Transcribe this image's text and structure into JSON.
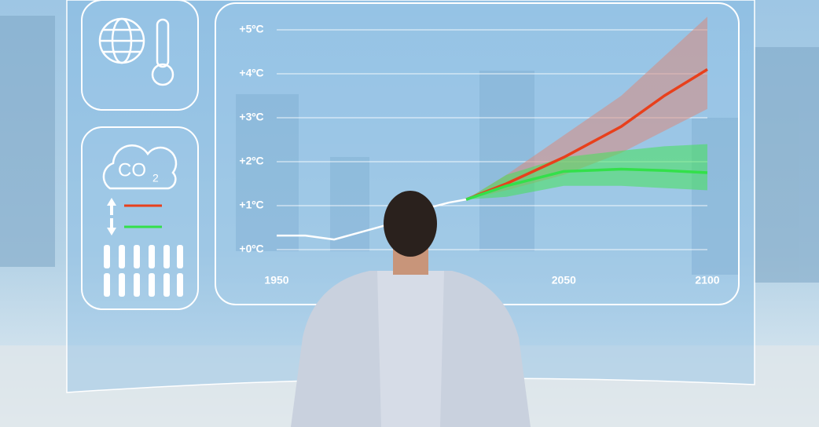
{
  "panel": {
    "co2": "CO",
    "co2_subscript": "2"
  },
  "chart_data": {
    "type": "line",
    "x": [
      1950,
      1960,
      1970,
      1980,
      1990,
      2000,
      2010,
      2016,
      2030,
      2050,
      2070,
      2085,
      2100
    ],
    "series": [
      {
        "color": "#ffffff",
        "values": [
          0.32,
          0.32,
          0.23,
          0.41,
          0.59,
          0.9,
          1.07,
          1.14,
          null,
          null,
          null,
          null,
          null
        ]
      },
      {
        "color": "#e8401c",
        "values": [
          null,
          null,
          null,
          null,
          null,
          null,
          null,
          1.14,
          1.5,
          2.1,
          2.8,
          3.5,
          4.1
        ],
        "lower": [
          null,
          null,
          null,
          null,
          null,
          null,
          null,
          1.14,
          1.35,
          1.7,
          2.2,
          2.7,
          3.2
        ],
        "upper": [
          null,
          null,
          null,
          null,
          null,
          null,
          null,
          1.14,
          1.7,
          2.6,
          3.5,
          4.4,
          5.3
        ],
        "band_color": "#d88a7e"
      },
      {
        "color": "#33e04a",
        "values": [
          null,
          null,
          null,
          null,
          null,
          null,
          null,
          1.14,
          1.45,
          1.78,
          1.83,
          1.8,
          1.75
        ],
        "lower": [
          null,
          null,
          null,
          null,
          null,
          null,
          null,
          1.14,
          1.2,
          1.45,
          1.45,
          1.4,
          1.35
        ],
        "upper": [
          null,
          null,
          null,
          null,
          null,
          null,
          null,
          1.14,
          1.7,
          2.1,
          2.25,
          2.35,
          2.4
        ],
        "band_color": "#46e15a"
      }
    ],
    "xlim": [
      1950,
      2100
    ],
    "xticks": [
      1950,
      2050,
      2100
    ],
    "ylim": [
      -0.4,
      5.6
    ],
    "yticks": [
      {
        "value": 0,
        "label": "+0ºC"
      },
      {
        "value": 1,
        "label": "+1ºC"
      },
      {
        "value": 2,
        "label": "+2ºC"
      },
      {
        "value": 3,
        "label": "+3ºC"
      },
      {
        "value": 4,
        "label": "+4ºC"
      },
      {
        "value": 5,
        "label": "+5ºC"
      }
    ],
    "grid": true
  }
}
